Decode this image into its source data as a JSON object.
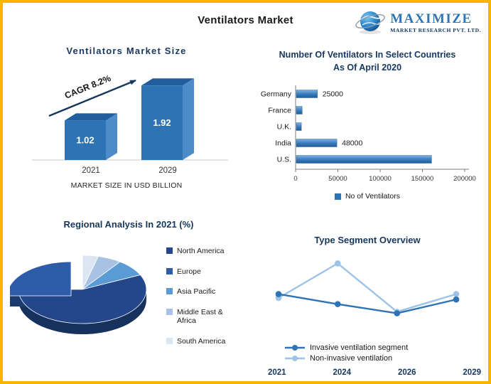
{
  "page": {
    "title": "Ventilators Market"
  },
  "logo": {
    "name": "MAXIMIZE",
    "tagline": "MARKET RESEARCH PVT. LTD."
  },
  "colors": {
    "accent_blue": "#2E74B5",
    "navy": "#17375E",
    "border_gold": "#F7B500",
    "light_blue": "#9DC3E6"
  },
  "chart_data": [
    {
      "id": "market_size",
      "type": "bar",
      "title": "Ventilators Market Size",
      "categories": [
        "2021",
        "2029"
      ],
      "values": [
        1.02,
        1.92
      ],
      "value_labels": [
        "1.02",
        "1.92"
      ],
      "annotation": "CAGR 8.2%",
      "axis_caption": "MARKET SIZE IN USD BILLION",
      "ylim": [
        0,
        2.2
      ],
      "bar_color": "#2E74B5"
    },
    {
      "id": "ventilator_counts",
      "type": "bar",
      "orientation": "horizontal",
      "title": "Number Of Ventilators In Select Countries As Of April 2020",
      "title_lines": [
        "Number Of Ventilators In Select Countries",
        "As Of April 2020"
      ],
      "categories": [
        "Germany",
        "France",
        "U.K.",
        "India",
        "U.S."
      ],
      "values": [
        25000,
        7000,
        6000,
        48000,
        160000
      ],
      "data_labels": {
        "Germany": "25000",
        "India": "48000"
      },
      "xlim": [
        0,
        200000
      ],
      "xticks": [
        0,
        50000,
        100000,
        150000,
        200000
      ],
      "legend": [
        "No of Ventilators"
      ],
      "bar_color": "#2E74B5"
    },
    {
      "id": "regional_analysis",
      "type": "pie",
      "title": "Regional Analysis In 2021 (%)",
      "slices": [
        {
          "label": "North America",
          "value": 57,
          "color": "#24468B"
        },
        {
          "label": "Europe",
          "value": 25,
          "color": "#2F5CA8",
          "exploded": true
        },
        {
          "label": "Asia Pacific",
          "value": 8,
          "color": "#5B9BD5"
        },
        {
          "label": "Middle East & Africa",
          "value": 6,
          "color": "#A9C2E4"
        },
        {
          "label": "South America",
          "value": 4,
          "color": "#DCE5F2"
        }
      ]
    },
    {
      "id": "type_segment",
      "type": "line",
      "title": "Type Segment Overview",
      "x": [
        "2021",
        "2024",
        "2026",
        "2029"
      ],
      "series": [
        {
          "name": "Invasive ventilation segment",
          "color": "#2E74B5",
          "values": [
            55,
            42,
            30,
            48
          ]
        },
        {
          "name": "Non-invasive ventilation",
          "color": "#9DC3E6",
          "values": [
            50,
            95,
            32,
            55
          ]
        }
      ],
      "ylim": [
        0,
        100
      ]
    }
  ]
}
